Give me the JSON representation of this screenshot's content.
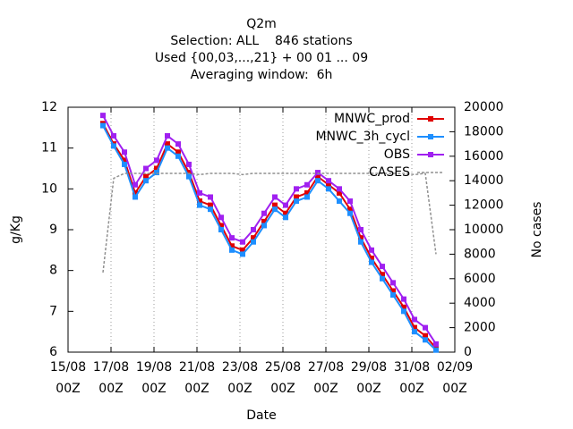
{
  "chart_data": {
    "type": "line",
    "title": [
      "Q2m",
      "Selection: ALL    846 stations",
      "Used {00,03,...,21} + 00 01 ... 09",
      "Averaging window:  6h"
    ],
    "xlabel": "Date",
    "ylabel": "g/Kg",
    "y2label": "No cases",
    "x": [
      "16/08 15Z",
      "17/08 03Z",
      "17/08 15Z",
      "18/08 03Z",
      "18/08 15Z",
      "19/08 03Z",
      "19/08 15Z",
      "20/08 03Z",
      "20/08 15Z",
      "21/08 03Z",
      "21/08 15Z",
      "22/08 03Z",
      "22/08 15Z",
      "23/08 03Z",
      "23/08 15Z",
      "24/08 03Z",
      "24/08 15Z",
      "25/08 03Z",
      "25/08 15Z",
      "26/08 03Z",
      "26/08 15Z",
      "27/08 03Z",
      "27/08 15Z",
      "28/08 03Z",
      "28/08 15Z",
      "29/08 03Z",
      "29/08 15Z",
      "30/08 03Z",
      "30/08 15Z",
      "31/08 03Z",
      "31/08 15Z",
      "01/09 03Z"
    ],
    "xlim": [
      "15/08 00Z",
      "02/09 00Z"
    ],
    "xticks": [
      {
        "value": "15/08 00Z",
        "label": [
          "15/08",
          "00Z"
        ]
      },
      {
        "value": "17/08 00Z",
        "label": [
          "17/08",
          "00Z"
        ]
      },
      {
        "value": "19/08 00Z",
        "label": [
          "19/08",
          "00Z"
        ]
      },
      {
        "value": "21/08 00Z",
        "label": [
          "21/08",
          "00Z"
        ]
      },
      {
        "value": "23/08 00Z",
        "label": [
          "23/08",
          "00Z"
        ]
      },
      {
        "value": "25/08 00Z",
        "label": [
          "25/08",
          "00Z"
        ]
      },
      {
        "value": "27/08 00Z",
        "label": [
          "27/08",
          "00Z"
        ]
      },
      {
        "value": "29/08 00Z",
        "label": [
          "29/08",
          "00Z"
        ]
      },
      {
        "value": "31/08 00Z",
        "label": [
          "31/08",
          "00Z"
        ]
      },
      {
        "value": "02/09 00Z",
        "label": [
          "02/09",
          "00Z"
        ]
      }
    ],
    "ylim": [
      6,
      12
    ],
    "yticks": [
      6,
      7,
      8,
      9,
      10,
      11,
      12
    ],
    "y2lim": [
      0,
      20000
    ],
    "y2ticks": [
      0,
      2000,
      4000,
      6000,
      8000,
      10000,
      12000,
      14000,
      16000,
      18000,
      20000
    ],
    "grid": "x",
    "legend": "top-right",
    "series": [
      {
        "name": "MNWC_prod",
        "color": "#e00000",
        "marker": "square",
        "values": [
          11.6,
          11.1,
          10.7,
          9.9,
          10.3,
          10.5,
          11.1,
          10.9,
          10.4,
          9.7,
          9.6,
          9.1,
          8.6,
          8.5,
          8.8,
          9.2,
          9.6,
          9.4,
          9.8,
          9.9,
          10.3,
          10.1,
          9.9,
          9.5,
          8.8,
          8.3,
          7.9,
          7.5,
          7.1,
          6.6,
          6.4,
          6.1
        ]
      },
      {
        "name": "MNWC_3h_cycl",
        "color": "#1e8fff",
        "marker": "square",
        "values": [
          11.55,
          11.05,
          10.6,
          9.8,
          10.2,
          10.4,
          11.0,
          10.8,
          10.3,
          9.6,
          9.5,
          9.0,
          8.5,
          8.4,
          8.7,
          9.1,
          9.5,
          9.3,
          9.7,
          9.8,
          10.2,
          10.0,
          9.7,
          9.4,
          8.7,
          8.2,
          7.8,
          7.4,
          7.0,
          6.5,
          6.3,
          6.05
        ]
      },
      {
        "name": "OBS",
        "color": "#a020f0",
        "marker": "square",
        "values": [
          11.8,
          11.3,
          10.9,
          10.1,
          10.5,
          10.7,
          11.3,
          11.1,
          10.6,
          9.9,
          9.8,
          9.3,
          8.8,
          8.7,
          9.0,
          9.4,
          9.8,
          9.6,
          10.0,
          10.1,
          10.4,
          10.2,
          10.0,
          9.7,
          9.0,
          8.5,
          8.1,
          7.7,
          7.3,
          6.8,
          6.6,
          6.2
        ]
      },
      {
        "name": "CASES",
        "color": "#909090",
        "dash": true,
        "axis": "y2",
        "values": [
          6500,
          14200,
          14600,
          14600,
          14600,
          14600,
          14600,
          14600,
          14600,
          14500,
          14600,
          14600,
          14600,
          14500,
          14600,
          14600,
          14600,
          14600,
          14600,
          14600,
          14600,
          14600,
          14600,
          14600,
          14600,
          14600,
          14600,
          14600,
          14600,
          14500,
          14600,
          8000
        ]
      }
    ]
  }
}
